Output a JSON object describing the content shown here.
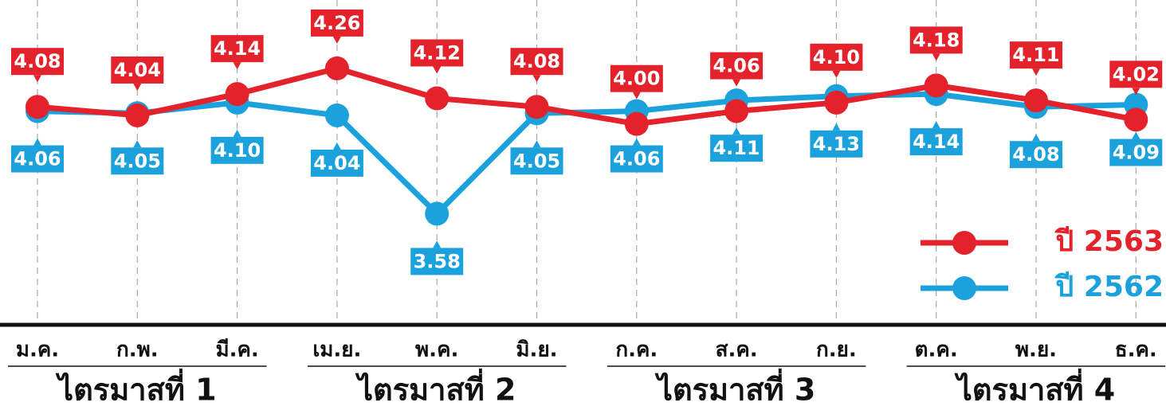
{
  "chart_data": {
    "type": "line",
    "categories": [
      "ม.ค.",
      "ก.พ.",
      "มี.ค.",
      "เม.ย.",
      "พ.ค.",
      "มิ.ย.",
      "ก.ค.",
      "ส.ค.",
      "ก.ย.",
      "ต.ค.",
      "พ.ย.",
      "ธ.ค."
    ],
    "groups": [
      "ไตรมาสที่ 1",
      "ไตรมาสที่ 2",
      "ไตรมาสที่ 3",
      "ไตรมาสที่ 4"
    ],
    "series": [
      {
        "name": "ปี 2562",
        "color": "#1ba1dc",
        "values": [
          4.06,
          4.05,
          4.1,
          4.04,
          3.58,
          4.05,
          4.06,
          4.11,
          4.13,
          4.14,
          4.08,
          4.09
        ],
        "value_labels": [
          "4.06",
          "4.05",
          "4.10",
          "4.04",
          "3.58",
          "4.05",
          "4.06",
          "4.11",
          "4.13",
          "4.14",
          "4.08",
          "4.09"
        ]
      },
      {
        "name": "ปี 2563",
        "color": "#e3222b",
        "values": [
          4.08,
          4.04,
          4.14,
          4.26,
          4.12,
          4.08,
          4.0,
          4.06,
          4.1,
          4.18,
          4.11,
          4.02
        ],
        "value_labels": [
          "4.08",
          "4.04",
          "4.14",
          "4.26",
          "4.12",
          "4.08",
          "4.00",
          "4.06",
          "4.10",
          "4.18",
          "4.11",
          "4.02"
        ]
      }
    ],
    "ylim": [
      3.06,
      4.58
    ],
    "grid": true,
    "legend": "right"
  }
}
